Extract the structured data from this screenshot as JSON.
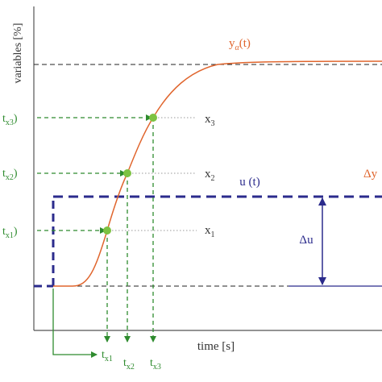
{
  "axes": {
    "y_label": "variables [%]",
    "x_label": "time [s]"
  },
  "curves": {
    "response_label_base": "y",
    "response_label_sub": "α",
    "response_label_arg": "(t)",
    "input_label": "u (t)",
    "delta_y_label": "Δy",
    "delta_u_label": "Δu"
  },
  "markers": {
    "y_ticks": [
      {
        "base": "t",
        "sub": "x3",
        "suffix": ")"
      },
      {
        "base": "t",
        "sub": "x2",
        "suffix": ")"
      },
      {
        "base": "t",
        "sub": "x1",
        "suffix": ")"
      }
    ],
    "x_ticks": [
      {
        "base": "t",
        "sub": "x1"
      },
      {
        "base": "t",
        "sub": "x2"
      },
      {
        "base": "t",
        "sub": "x3"
      }
    ],
    "points": [
      {
        "base": "x",
        "sub": "3"
      },
      {
        "base": "x",
        "sub": "2"
      },
      {
        "base": "x",
        "sub": "1"
      }
    ]
  },
  "colors": {
    "axis": "#555555",
    "response": "#e0652d",
    "input": "#2b2b8c",
    "marker": "#2e8b2e",
    "point": "#7dc242",
    "reference": "#222222"
  }
}
